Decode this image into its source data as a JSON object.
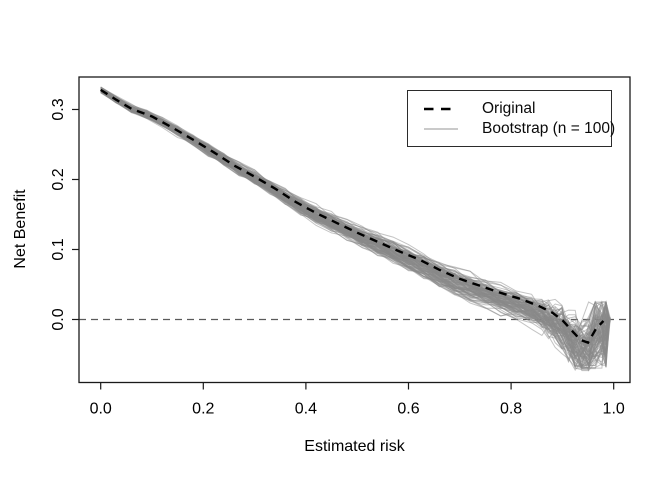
{
  "figure": {
    "background": "#ffffff"
  },
  "axes": {
    "x": {
      "label": "Estimated risk",
      "tick_labels": [
        "0.0",
        "0.2",
        "0.4",
        "0.6",
        "0.8",
        "1.0"
      ],
      "tick_values": [
        0.0,
        0.2,
        0.4,
        0.6,
        0.8,
        1.0
      ],
      "range": [
        -0.0423,
        1.0318
      ]
    },
    "y": {
      "label": "Net Benefit",
      "tick_labels": [
        "0.0",
        "0.1",
        "0.2",
        "0.3"
      ],
      "tick_values": [
        0.0,
        0.1,
        0.2,
        0.3
      ],
      "range": [
        -0.09,
        0.3464
      ]
    }
  },
  "legend": {
    "items": [
      {
        "label": "Original",
        "line_style": "dashed",
        "color": "#000000",
        "line_width": 2.6
      },
      {
        "label": "Bootstrap (n = 100)",
        "line_style": "solid",
        "color": "#ababab",
        "line_width": 1.2
      }
    ]
  },
  "reference_line": {
    "axis": "y",
    "value": 0,
    "style": "dashed",
    "color": "#5a5a5a",
    "width": 1.3
  },
  "chart_data": {
    "type": "line",
    "title": "",
    "xlabel": "Estimated risk",
    "ylabel": "Net Benefit",
    "xlim": [
      -0.0423,
      1.0318
    ],
    "ylim": [
      -0.09,
      0.3464
    ],
    "grid": false,
    "legend_position": "top-right",
    "series": [
      {
        "name": "Original",
        "style": "dashed",
        "color": "#000000",
        "width": 2.4,
        "dash": "8 6",
        "x": [
          0.0,
          0.03,
          0.06,
          0.1,
          0.14,
          0.18,
          0.22,
          0.26,
          0.3,
          0.34,
          0.38,
          0.42,
          0.46,
          0.5,
          0.54,
          0.58,
          0.62,
          0.66,
          0.7,
          0.74,
          0.78,
          0.82,
          0.855,
          0.88,
          0.9,
          0.92,
          0.935,
          0.95,
          0.965,
          0.98
        ],
        "y": [
          0.328,
          0.314,
          0.301,
          0.29,
          0.274,
          0.257,
          0.239,
          0.22,
          0.204,
          0.187,
          0.168,
          0.152,
          0.138,
          0.124,
          0.111,
          0.098,
          0.086,
          0.071,
          0.058,
          0.048,
          0.038,
          0.029,
          0.019,
          0.01,
          -0.001,
          -0.017,
          -0.029,
          -0.033,
          -0.014,
          -0.002
        ]
      },
      {
        "name": "Bootstrap (n = 100)",
        "style": "solid",
        "color": "#8a8a8a",
        "opacity": 0.5,
        "width": 1,
        "n": 100,
        "seed": 11,
        "generation": {
          "note": "100 bootstrap resample curves scattered around Original; envelope read from pixels",
          "spread_base": 0.0035,
          "spread_slope": 0.012,
          "bias_scale": -0.016,
          "tail_start": 0.85,
          "tail_chaos": [
            0.1,
            0.5
          ],
          "min_value": -0.073,
          "end_t": 0.985,
          "end_jitter": 0.012
        }
      }
    ]
  }
}
